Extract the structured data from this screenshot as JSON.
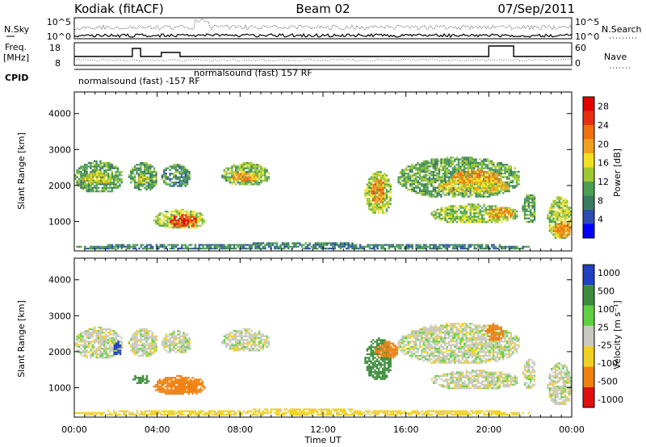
{
  "header": {
    "station": "Kodiak (fitACF)",
    "beam": "Beam 02",
    "date": "07/Sep/2011"
  },
  "panels": {
    "nsky_label": "N.Sky",
    "nsky_ticks": [
      "10^5",
      "10^0"
    ],
    "nsearch_label": "N.Search",
    "nsearch_ticks": [
      "10^5",
      "10^0"
    ],
    "freq_label_1": "Freq.",
    "freq_label_2": "[MHz]",
    "freq_ticks": [
      "18",
      "8"
    ],
    "nave_label": "Nave",
    "nave_ticks": [
      "60",
      "0"
    ],
    "cpid_label": "CPID",
    "cpid_text_1": "normalsound (fast) -157 RF",
    "cpid_text_2": "normalsound (fast) 157 RF"
  },
  "axes": {
    "ylabel": "Slant Range [km]",
    "yticks": [
      "1000",
      "2000",
      "3000",
      "4000"
    ],
    "xticks": [
      "00:00",
      "04:00",
      "08:00",
      "12:00",
      "16:00",
      "20:00",
      "00:00"
    ],
    "xlabel": "Time UT"
  },
  "colorbars": {
    "power_label": "Power [dB]",
    "power_ticks": [
      "4",
      "8",
      "12",
      "16",
      "20",
      "24",
      "28"
    ],
    "velocity_label": "Velocity [m s⁻¹]",
    "velocity_ticks": [
      "1000",
      "500",
      "100",
      "25",
      "-25",
      "-100",
      "-500",
      "-1000"
    ]
  },
  "chart_data": [
    {
      "type": "heatmap",
      "title": "Power",
      "xlabel": "Time UT",
      "ylabel": "Slant Range [km]",
      "xlim_hours": [
        0,
        24
      ],
      "ylim_km": [
        180,
        4600
      ],
      "colorbar": {
        "label": "Power [dB]",
        "range": [
          0,
          30
        ]
      },
      "regions": [
        {
          "t0": 0.0,
          "t1": 2.3,
          "r0": 1800,
          "r1": 2700,
          "level": 10
        },
        {
          "t0": 0.4,
          "t1": 1.8,
          "r0": 2050,
          "r1": 2400,
          "level": 16
        },
        {
          "t0": 2.6,
          "t1": 4.0,
          "r0": 1850,
          "r1": 2650,
          "level": 10
        },
        {
          "t0": 2.9,
          "t1": 3.6,
          "r0": 2050,
          "r1": 2300,
          "level": 16
        },
        {
          "t0": 4.2,
          "t1": 5.6,
          "r0": 1950,
          "r1": 2600,
          "level": 9
        },
        {
          "t0": 3.8,
          "t1": 6.3,
          "r0": 800,
          "r1": 1350,
          "level": 14
        },
        {
          "t0": 4.6,
          "t1": 5.9,
          "r0": 850,
          "r1": 1200,
          "level": 26
        },
        {
          "t0": 7.1,
          "t1": 9.4,
          "r0": 2000,
          "r1": 2650,
          "level": 12
        },
        {
          "t0": 7.6,
          "t1": 8.8,
          "r0": 2100,
          "r1": 2400,
          "level": 19
        },
        {
          "t0": 14.0,
          "t1": 15.3,
          "r0": 1200,
          "r1": 2400,
          "level": 14
        },
        {
          "t0": 14.3,
          "t1": 15.0,
          "r0": 1500,
          "r1": 2200,
          "level": 21
        },
        {
          "t0": 15.6,
          "t1": 21.5,
          "r0": 1650,
          "r1": 2800,
          "level": 11
        },
        {
          "t0": 17.5,
          "t1": 21.0,
          "r0": 1800,
          "r1": 2200,
          "level": 17
        },
        {
          "t0": 18.2,
          "t1": 20.6,
          "r0": 2050,
          "r1": 2450,
          "level": 20
        },
        {
          "t0": 17.2,
          "t1": 21.4,
          "r0": 950,
          "r1": 1500,
          "level": 13
        },
        {
          "t0": 19.8,
          "t1": 21.2,
          "r0": 1100,
          "r1": 1400,
          "level": 20
        },
        {
          "t0": 21.6,
          "t1": 22.3,
          "r0": 950,
          "r1": 1800,
          "level": 10
        },
        {
          "t0": 22.8,
          "t1": 24.0,
          "r0": 500,
          "r1": 1700,
          "level": 14
        },
        {
          "t0": 23.1,
          "t1": 23.9,
          "r0": 550,
          "r1": 1000,
          "level": 21
        },
        {
          "t0": 0.0,
          "t1": 22.0,
          "r0": 200,
          "r1": 420,
          "level": 8
        }
      ]
    },
    {
      "type": "heatmap",
      "title": "Velocity",
      "xlabel": "Time UT",
      "ylabel": "Slant Range [km]",
      "xlim_hours": [
        0,
        24
      ],
      "ylim_km": [
        180,
        4600
      ],
      "colorbar": {
        "label": "Velocity [m s⁻¹]",
        "range": [
          -1000,
          1000
        ]
      },
      "regions": [
        {
          "t0": 0.0,
          "t1": 2.3,
          "r0": 1800,
          "r1": 2700,
          "vel": 0
        },
        {
          "t0": 1.8,
          "t1": 2.3,
          "r0": 1900,
          "r1": 2300,
          "vel": 700
        },
        {
          "t0": 2.6,
          "t1": 4.0,
          "r0": 1850,
          "r1": 2650,
          "vel": 0
        },
        {
          "t0": 2.8,
          "t1": 3.6,
          "r0": 1100,
          "r1": 1400,
          "vel": 200
        },
        {
          "t0": 4.2,
          "t1": 5.6,
          "r0": 1950,
          "r1": 2600,
          "vel": 0
        },
        {
          "t0": 3.8,
          "t1": 6.3,
          "r0": 800,
          "r1": 1350,
          "vel": -150
        },
        {
          "t0": 4.6,
          "t1": 5.9,
          "r0": 850,
          "r1": 1250,
          "vel": -300
        },
        {
          "t0": 7.1,
          "t1": 9.4,
          "r0": 2000,
          "r1": 2650,
          "vel": 0
        },
        {
          "t0": 14.0,
          "t1": 15.3,
          "r0": 1200,
          "r1": 2400,
          "vel": 150
        },
        {
          "t0": 14.5,
          "t1": 15.6,
          "r0": 1800,
          "r1": 2300,
          "vel": -250
        },
        {
          "t0": 15.6,
          "t1": 21.5,
          "r0": 1650,
          "r1": 2800,
          "vel": 0
        },
        {
          "t0": 19.8,
          "t1": 20.7,
          "r0": 2300,
          "r1": 2800,
          "vel": -300
        },
        {
          "t0": 17.2,
          "t1": 21.4,
          "r0": 950,
          "r1": 1500,
          "vel": 0
        },
        {
          "t0": 21.6,
          "t1": 22.3,
          "r0": 950,
          "r1": 1800,
          "vel": 0
        },
        {
          "t0": 22.8,
          "t1": 24.0,
          "r0": 500,
          "r1": 1700,
          "vel": 0
        },
        {
          "t0": 0.0,
          "t1": 22.0,
          "r0": 200,
          "r1": 420,
          "vel": -60
        }
      ]
    }
  ]
}
